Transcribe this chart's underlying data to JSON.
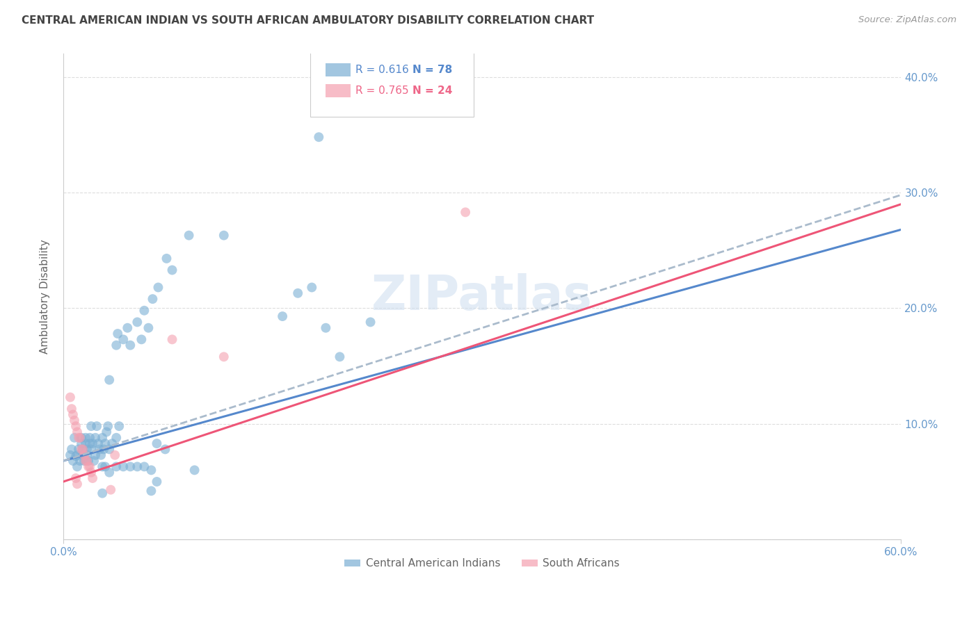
{
  "title": "CENTRAL AMERICAN INDIAN VS SOUTH AFRICAN AMBULATORY DISABILITY CORRELATION CHART",
  "source": "Source: ZipAtlas.com",
  "ylabel": "Ambulatory Disability",
  "xlim": [
    0.0,
    0.6
  ],
  "ylim": [
    0.0,
    0.42
  ],
  "legend_r1": "R = 0.616",
  "legend_n1": "N = 78",
  "legend_r2": "R = 0.765",
  "legend_n2": "N = 24",
  "blue_color": "#7BAFD4",
  "pink_color": "#F4A0B0",
  "trendline_blue_color": "#5588CC",
  "trendline_pink_color": "#EE5577",
  "trendline_dashed_color": "#AABBCC",
  "axis_label_color": "#6699CC",
  "title_color": "#444444",
  "grid_color": "#DDDDDD",
  "watermark_color": "#CCDDEF",
  "legend_blue_text": "#5588CC",
  "legend_pink_text": "#EE6688",
  "blue_scatter": [
    [
      0.005,
      0.073
    ],
    [
      0.006,
      0.078
    ],
    [
      0.007,
      0.068
    ],
    [
      0.008,
      0.088
    ],
    [
      0.009,
      0.072
    ],
    [
      0.01,
      0.063
    ],
    [
      0.01,
      0.073
    ],
    [
      0.011,
      0.078
    ],
    [
      0.012,
      0.068
    ],
    [
      0.013,
      0.083
    ],
    [
      0.013,
      0.088
    ],
    [
      0.014,
      0.078
    ],
    [
      0.014,
      0.073
    ],
    [
      0.015,
      0.068
    ],
    [
      0.016,
      0.083
    ],
    [
      0.016,
      0.088
    ],
    [
      0.017,
      0.078
    ],
    [
      0.017,
      0.073
    ],
    [
      0.018,
      0.068
    ],
    [
      0.019,
      0.083
    ],
    [
      0.019,
      0.088
    ],
    [
      0.02,
      0.078
    ],
    [
      0.02,
      0.098
    ],
    [
      0.021,
      0.083
    ],
    [
      0.022,
      0.068
    ],
    [
      0.023,
      0.088
    ],
    [
      0.023,
      0.073
    ],
    [
      0.024,
      0.098
    ],
    [
      0.025,
      0.083
    ],
    [
      0.026,
      0.078
    ],
    [
      0.027,
      0.073
    ],
    [
      0.028,
      0.088
    ],
    [
      0.028,
      0.063
    ],
    [
      0.029,
      0.078
    ],
    [
      0.03,
      0.083
    ],
    [
      0.031,
      0.093
    ],
    [
      0.032,
      0.098
    ],
    [
      0.033,
      0.138
    ],
    [
      0.038,
      0.168
    ],
    [
      0.039,
      0.178
    ],
    [
      0.043,
      0.173
    ],
    [
      0.046,
      0.183
    ],
    [
      0.048,
      0.168
    ],
    [
      0.053,
      0.188
    ],
    [
      0.056,
      0.173
    ],
    [
      0.058,
      0.198
    ],
    [
      0.061,
      0.183
    ],
    [
      0.064,
      0.208
    ],
    [
      0.068,
      0.218
    ],
    [
      0.074,
      0.243
    ],
    [
      0.078,
      0.233
    ],
    [
      0.09,
      0.263
    ],
    [
      0.094,
      0.06
    ],
    [
      0.028,
      0.04
    ],
    [
      0.063,
      0.042
    ],
    [
      0.067,
      0.05
    ],
    [
      0.063,
      0.06
    ],
    [
      0.033,
      0.058
    ],
    [
      0.038,
      0.063
    ],
    [
      0.043,
      0.063
    ],
    [
      0.048,
      0.063
    ],
    [
      0.053,
      0.063
    ],
    [
      0.058,
      0.063
    ],
    [
      0.067,
      0.083
    ],
    [
      0.073,
      0.078
    ],
    [
      0.033,
      0.078
    ],
    [
      0.035,
      0.083
    ],
    [
      0.038,
      0.088
    ],
    [
      0.04,
      0.098
    ],
    [
      0.03,
      0.063
    ],
    [
      0.157,
      0.193
    ],
    [
      0.168,
      0.213
    ],
    [
      0.178,
      0.218
    ],
    [
      0.188,
      0.183
    ],
    [
      0.22,
      0.188
    ],
    [
      0.198,
      0.158
    ],
    [
      0.183,
      0.348
    ],
    [
      0.115,
      0.263
    ]
  ],
  "pink_scatter": [
    [
      0.005,
      0.123
    ],
    [
      0.006,
      0.113
    ],
    [
      0.007,
      0.108
    ],
    [
      0.008,
      0.103
    ],
    [
      0.009,
      0.098
    ],
    [
      0.01,
      0.093
    ],
    [
      0.011,
      0.088
    ],
    [
      0.012,
      0.088
    ],
    [
      0.013,
      0.078
    ],
    [
      0.014,
      0.078
    ],
    [
      0.015,
      0.073
    ],
    [
      0.016,
      0.068
    ],
    [
      0.017,
      0.068
    ],
    [
      0.018,
      0.063
    ],
    [
      0.019,
      0.063
    ],
    [
      0.02,
      0.058
    ],
    [
      0.021,
      0.053
    ],
    [
      0.009,
      0.053
    ],
    [
      0.01,
      0.048
    ],
    [
      0.078,
      0.173
    ],
    [
      0.288,
      0.283
    ],
    [
      0.115,
      0.158
    ],
    [
      0.037,
      0.073
    ],
    [
      0.034,
      0.043
    ]
  ],
  "blue_trend_x": [
    0.0,
    0.6
  ],
  "blue_trend_y": [
    0.068,
    0.268
  ],
  "pink_trend_x": [
    0.0,
    0.6
  ],
  "pink_trend_y": [
    0.05,
    0.29
  ],
  "blue_dash_trend_x": [
    0.0,
    0.6
  ],
  "blue_dash_trend_y": [
    0.068,
    0.298
  ]
}
